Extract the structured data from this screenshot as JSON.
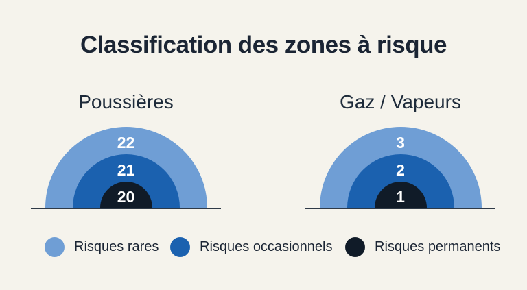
{
  "page": {
    "title": "Classification des zones à risque",
    "background": "#F5F3EC"
  },
  "colors": {
    "title_text": "#1B2534",
    "subtitle_text": "#1E2B3A",
    "zone_label_text": "#FFFFFF",
    "baseline": "#2F3A47",
    "risk_rare": "#6F9ED5",
    "risk_occasional": "#1B61AF",
    "risk_permanent": "#101B28"
  },
  "diagrams": [
    {
      "title": "Poussières",
      "zones": [
        {
          "label": "22",
          "risk": "rare"
        },
        {
          "label": "21",
          "risk": "occasionnel"
        },
        {
          "label": "20",
          "risk": "permanent"
        }
      ]
    },
    {
      "title": "Gaz / Vapeurs",
      "zones": [
        {
          "label": "3",
          "risk": "rare"
        },
        {
          "label": "2",
          "risk": "occasionnel"
        },
        {
          "label": "1",
          "risk": "permanent"
        }
      ]
    }
  ],
  "legend": {
    "items": [
      {
        "label": "Risques rares",
        "color": "#6F9ED5"
      },
      {
        "label": "Risques occasionnels",
        "color": "#1B61AF"
      },
      {
        "label": "Risques permanents",
        "color": "#101B28"
      }
    ]
  }
}
